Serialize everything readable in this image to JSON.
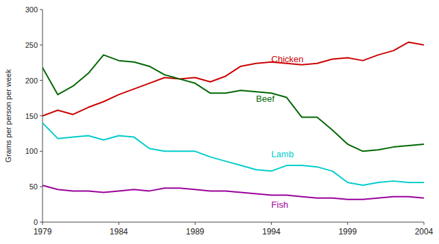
{
  "chart_data": {
    "type": "line",
    "x": [
      1979,
      1980,
      1981,
      1982,
      1983,
      1984,
      1985,
      1986,
      1987,
      1988,
      1989,
      1990,
      1991,
      1992,
      1993,
      1994,
      1995,
      1996,
      1997,
      1998,
      1999,
      2000,
      2001,
      2002,
      2003,
      2004
    ],
    "series": [
      {
        "color": "#cc0000",
        "values": [
          150,
          158,
          152,
          162,
          170,
          180,
          188,
          196,
          204,
          202,
          204,
          198,
          206,
          220,
          224,
          226,
          224,
          222,
          224,
          230,
          232,
          228,
          236,
          242,
          254,
          250
        ]
      },
      {
        "color": "#006600",
        "values": [
          218,
          180,
          192,
          210,
          236,
          228,
          226,
          220,
          208,
          202,
          196,
          182,
          182,
          186,
          184,
          182,
          176,
          148,
          148,
          130,
          110,
          100,
          102,
          106,
          108,
          110
        ]
      },
      {
        "color": "#00cccc",
        "values": [
          140,
          118,
          120,
          122,
          116,
          122,
          120,
          104,
          100,
          100,
          100,
          92,
          86,
          80,
          74,
          72,
          80,
          80,
          78,
          72,
          56,
          52,
          56,
          58,
          56,
          56
        ]
      },
      {
        "color": "#990099",
        "values": [
          52,
          46,
          44,
          44,
          42,
          44,
          46,
          44,
          48,
          48,
          46,
          44,
          44,
          42,
          40,
          38,
          38,
          36,
          34,
          34,
          32,
          32,
          34,
          36,
          36,
          34
        ]
      }
    ],
    "annotations": [
      {
        "text": "Chicken",
        "x": 1994,
        "y": 226,
        "color": "#cc0000"
      },
      {
        "text": "Beef",
        "x": 1993,
        "y": 170,
        "color": "#006600"
      },
      {
        "text": "Lamb",
        "x": 1994,
        "y": 92,
        "color": "#00cccc"
      },
      {
        "text": "Fish",
        "x": 1994,
        "y": 20,
        "color": "#990099"
      }
    ],
    "y_label": "Grams per person per week",
    "xlim": [
      1979,
      2004
    ],
    "ylim": [
      0,
      300
    ],
    "xticks": [
      1979,
      1984,
      1989,
      1994,
      1999,
      2004
    ],
    "yticks": [
      0,
      50,
      100,
      150,
      200,
      250,
      300
    ],
    "grid": false
  }
}
